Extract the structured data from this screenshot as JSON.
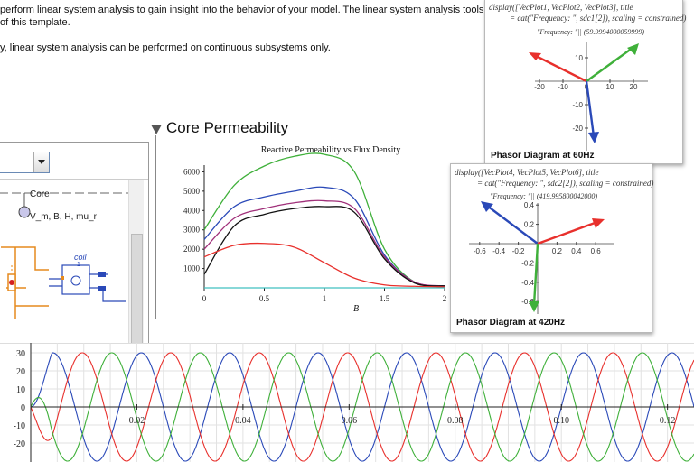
{
  "document": {
    "line1": "perform linear system analysis to gain insight into the behavior of your model. The linear system analysis tools are",
    "line2": "of this template.",
    "line3": "y, linear system analysis can be performed on continuous subsystems only."
  },
  "core_section": {
    "title": "Core Permeability"
  },
  "model_panel": {
    "core_label": "Core",
    "var_label": "V_m, B, H, mu_r",
    "coil_label": "coil",
    "coil_num": "1"
  },
  "phasor60": {
    "command_line1": "display([VecPlot1, VecPlot2, VecPlot3], title",
    "command_line2": "= cat(\"Frequency: \", sdc1[2]), scaling = constrained)",
    "freq_text": "\"Frequency: \"|| (59.9994000059999)",
    "caption": "Phasor Diagram at 60Hz",
    "x_ticks": [
      "-20",
      "-10",
      "0",
      "10",
      "20"
    ],
    "y_ticks": [
      "10",
      "-10",
      "-20"
    ],
    "colors": {
      "red": "#e8302c",
      "green": "#3fb03a",
      "blue": "#2a49b8"
    }
  },
  "phasor420": {
    "command_line1": "display([VecPlot4, VecPlot5, VecPlot6], title",
    "command_line2": "= cat(\"Frequency: \", sdc2[2]), scaling = constrained)",
    "freq_text": "\"Frequency: \"|| (419.995800042000)",
    "caption": "Phasor Diagram at 420Hz",
    "x_ticks": [
      "-0.6",
      "-0.4",
      "-0.2",
      "0.2",
      "0.4",
      "0.6"
    ],
    "y_ticks": [
      "0.4",
      "0.2",
      "-0.2",
      "-0.4",
      "-0.6"
    ],
    "colors": {
      "red": "#e8302c",
      "green": "#3fb03a",
      "blue": "#2a49b8"
    }
  },
  "chart_data": [
    {
      "type": "line",
      "title": "Reactive Permeability vs Flux Density",
      "xlabel": "B",
      "ylabel": "",
      "xlim": [
        0,
        2
      ],
      "ylim": [
        0,
        7000
      ],
      "x_ticks": [
        "0",
        "0.5",
        "1",
        "1.5",
        "2"
      ],
      "y_ticks": [
        "1000",
        "2000",
        "3000",
        "4000",
        "5000",
        "6000"
      ],
      "x": [
        0,
        0.25,
        0.5,
        0.75,
        1.0,
        1.25,
        1.5,
        1.75,
        2.0
      ],
      "series": [
        {
          "color": "#3fb03a",
          "values": [
            3000,
            5300,
            6300,
            6800,
            6900,
            6000,
            2000,
            300,
            100
          ]
        },
        {
          "color": "#2a49b8",
          "values": [
            2500,
            4200,
            4700,
            5000,
            5200,
            4600,
            1700,
            300,
            100
          ]
        },
        {
          "color": "#a0307a",
          "values": [
            2000,
            3600,
            4100,
            4400,
            4500,
            4100,
            1600,
            300,
            100
          ]
        },
        {
          "color": "#111111",
          "values": [
            700,
            3200,
            3800,
            4100,
            4200,
            3900,
            1500,
            250,
            100
          ]
        },
        {
          "color": "#e8302c",
          "values": [
            1600,
            2200,
            2300,
            2100,
            1300,
            500,
            150,
            80,
            50
          ]
        },
        {
          "color": "#40c0c0",
          "values": [
            0,
            0,
            0,
            0,
            0,
            0,
            0,
            0,
            0
          ]
        }
      ]
    },
    {
      "type": "line",
      "title": "",
      "xlabel": "",
      "ylabel": "",
      "xlim": [
        0,
        0.125
      ],
      "ylim": [
        -30,
        30
      ],
      "x_ticks": [
        "0.02",
        "0.04",
        "0.06",
        "0.08",
        "0.10",
        "0.12"
      ],
      "y_ticks": [
        "30",
        "20",
        "10",
        "0",
        "-10",
        "-20"
      ],
      "frequency_hz": 60,
      "amplitude": 30,
      "series": [
        {
          "color": "#2a49b8",
          "phase_deg": 0
        },
        {
          "color": "#e8302c",
          "phase_deg": -120
        },
        {
          "color": "#3fb03a",
          "phase_deg": 120
        }
      ]
    }
  ]
}
